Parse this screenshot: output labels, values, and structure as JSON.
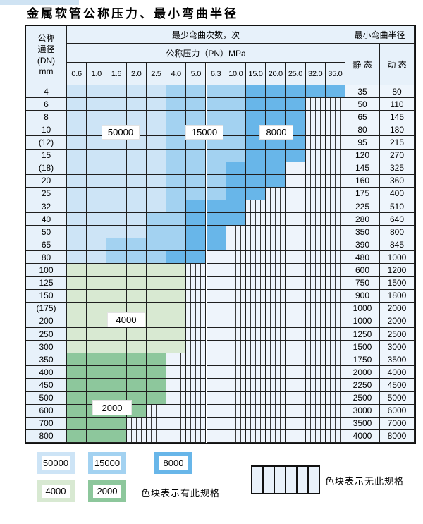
{
  "title": "金属软管公称压力、最小弯曲半径",
  "header": {
    "dn_label_lines": [
      "公称",
      "通径",
      "(DN)",
      "mm"
    ],
    "bend_cycles_label": "最少弯曲次数，次",
    "pressure_label": "公称压力（PN）MPa",
    "radius_label": "最小弯曲半径",
    "static_label": "静 态",
    "dynamic_label": "动 态",
    "pressure_columns": [
      "0.6",
      "1.0",
      "1.6",
      "2.0",
      "2.5",
      "4.0",
      "5.0",
      "6.3",
      "10.0",
      "15.0",
      "20.0",
      "25.0",
      "32.0",
      "35.0"
    ]
  },
  "chart_data": {
    "type": "table",
    "columns": [
      "DN(mm)",
      "0.6",
      "1.0",
      "1.6",
      "2.0",
      "2.5",
      "4.0",
      "5.0",
      "6.3",
      "10.0",
      "15.0",
      "20.0",
      "25.0",
      "32.0",
      "35.0",
      "静态",
      "动态"
    ],
    "bend_cycle_categories": [
      "50000",
      "15000",
      "8000",
      "4000",
      "2000"
    ],
    "rows": [
      {
        "dn": "4",
        "static": "35",
        "dynamic": "80",
        "fill": {
          "type": "blue",
          "light": 5,
          "medium": 9,
          "end": 14
        }
      },
      {
        "dn": "6",
        "static": "50",
        "dynamic": "110",
        "fill": {
          "type": "blue",
          "light": 5,
          "medium": 9,
          "end": 12
        }
      },
      {
        "dn": "8",
        "static": "65",
        "dynamic": "145",
        "fill": {
          "type": "blue",
          "light": 5,
          "medium": 9,
          "end": 12
        }
      },
      {
        "dn": "10",
        "static": "80",
        "dynamic": "180",
        "fill": {
          "type": "blue",
          "light": 5,
          "medium": 9,
          "end": 12
        }
      },
      {
        "dn": "(12)",
        "static": "95",
        "dynamic": "215",
        "fill": {
          "type": "blue",
          "light": 5,
          "medium": 9,
          "end": 12
        }
      },
      {
        "dn": "15",
        "static": "120",
        "dynamic": "270",
        "fill": {
          "type": "blue",
          "light": 5,
          "medium": 9,
          "end": 12
        }
      },
      {
        "dn": "(18)",
        "static": "145",
        "dynamic": "325",
        "fill": {
          "type": "blue",
          "light": 5,
          "medium": 8,
          "end": 11
        }
      },
      {
        "dn": "20",
        "static": "160",
        "dynamic": "360",
        "fill": {
          "type": "blue",
          "light": 5,
          "medium": 8,
          "end": 11
        }
      },
      {
        "dn": "25",
        "static": "175",
        "dynamic": "400",
        "fill": {
          "type": "blue",
          "light": 5,
          "medium": 8,
          "end": 10
        }
      },
      {
        "dn": "32",
        "static": "225",
        "dynamic": "510",
        "fill": {
          "type": "blue",
          "light": 5,
          "medium": 6,
          "end": 9
        }
      },
      {
        "dn": "40",
        "static": "280",
        "dynamic": "640",
        "fill": {
          "type": "blue",
          "light": 4,
          "medium": 6,
          "end": 9
        }
      },
      {
        "dn": "50",
        "static": "350",
        "dynamic": "800",
        "fill": {
          "type": "blue",
          "light": 4,
          "medium": 6,
          "end": 8
        }
      },
      {
        "dn": "65",
        "static": "390",
        "dynamic": "845",
        "fill": {
          "type": "blue",
          "light": 2,
          "medium": 6,
          "end": 8
        }
      },
      {
        "dn": "80",
        "static": "480",
        "dynamic": "1000",
        "fill": {
          "type": "blue",
          "light": 2,
          "medium": 5,
          "end": 7
        }
      },
      {
        "dn": "100",
        "static": "600",
        "dynamic": "1200",
        "fill": {
          "type": "green-light",
          "end": 6
        }
      },
      {
        "dn": "125",
        "static": "750",
        "dynamic": "1500",
        "fill": {
          "type": "green-light",
          "end": 6
        }
      },
      {
        "dn": "150",
        "static": "900",
        "dynamic": "1800",
        "fill": {
          "type": "green-light",
          "end": 6
        }
      },
      {
        "dn": "(175)",
        "static": "1000",
        "dynamic": "2000",
        "fill": {
          "type": "green-light",
          "end": 6
        }
      },
      {
        "dn": "200",
        "static": "1000",
        "dynamic": "2000",
        "fill": {
          "type": "green-light",
          "end": 6
        }
      },
      {
        "dn": "250",
        "static": "1250",
        "dynamic": "2500",
        "fill": {
          "type": "green-light",
          "end": 6
        }
      },
      {
        "dn": "300",
        "static": "1500",
        "dynamic": "3000",
        "fill": {
          "type": "green-light",
          "end": 6
        }
      },
      {
        "dn": "350",
        "static": "1750",
        "dynamic": "3500",
        "fill": {
          "type": "green-dark",
          "end": 5
        }
      },
      {
        "dn": "400",
        "static": "2000",
        "dynamic": "4000",
        "fill": {
          "type": "green-dark",
          "end": 5
        }
      },
      {
        "dn": "450",
        "static": "2250",
        "dynamic": "4500",
        "fill": {
          "type": "green-dark",
          "end": 5
        }
      },
      {
        "dn": "500",
        "static": "2500",
        "dynamic": "5000",
        "fill": {
          "type": "green-dark",
          "end": 5
        }
      },
      {
        "dn": "600",
        "static": "3000",
        "dynamic": "6000",
        "fill": {
          "type": "green-dark",
          "end": 4
        }
      },
      {
        "dn": "700",
        "static": "3500",
        "dynamic": "7000",
        "fill": {
          "type": "green-dark",
          "end": 3
        }
      },
      {
        "dn": "800",
        "static": "4000",
        "dynamic": "8000",
        "fill": {
          "type": "green-dark",
          "end": 3
        }
      }
    ]
  },
  "region_labels": [
    {
      "id": "lbl-50000",
      "text": "50000"
    },
    {
      "id": "lbl-15000",
      "text": "15000"
    },
    {
      "id": "lbl-8000",
      "text": "8000"
    },
    {
      "id": "lbl-4000",
      "text": "4000"
    },
    {
      "id": "lbl-2000",
      "text": "2000"
    }
  ],
  "legend": {
    "entries": [
      {
        "value": "50000",
        "category": "light-blue"
      },
      {
        "value": "15000",
        "category": "medium-blue"
      },
      {
        "value": "8000",
        "category": "dark-blue"
      },
      {
        "value": "4000",
        "category": "light-green"
      },
      {
        "value": "2000",
        "category": "dark-green"
      }
    ],
    "has_spec_text": "色块表示有此规格",
    "no_spec_text": "色块表示无此规格"
  },
  "colors": {
    "light_blue": "#cde4f6",
    "medium_blue": "#a3d2f1",
    "dark_blue": "#68b6e9",
    "light_green": "#d8e9d2",
    "dark_green": "#8dc79c",
    "header_bg": "#e7f1fa",
    "value_bg": "#eef5fc",
    "hatch_bg": "#eef4fb",
    "grid": "#1f1f1f"
  }
}
